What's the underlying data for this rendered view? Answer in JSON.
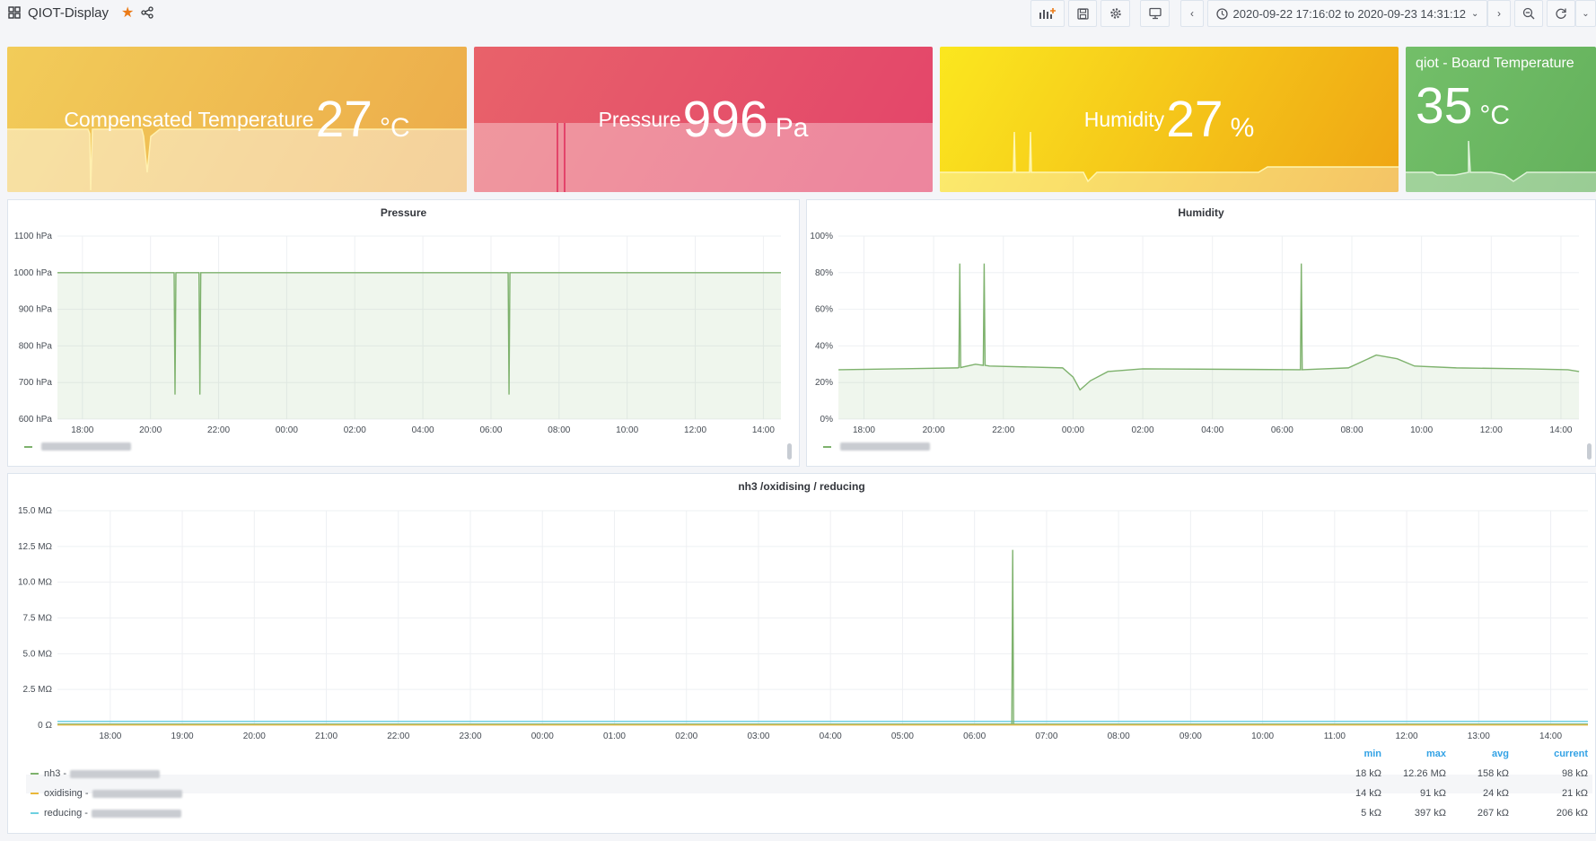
{
  "header": {
    "title": "QIOT-Display",
    "time_range": "2020-09-22 17:16:02 to 2020-09-23 14:31:12"
  },
  "stats": [
    {
      "prefix": "Compensated Temperature",
      "value": "27",
      "unit": "°C",
      "color_from": "#f2cc59",
      "color_to": "#ecab4a"
    },
    {
      "prefix": "Pressure",
      "value": "996",
      "unit": "Pa",
      "color_from": "#e8626a",
      "color_to": "#e3446a"
    },
    {
      "prefix": "Humidity",
      "value": "27",
      "unit": "%",
      "color_from": "#fbe71f",
      "color_to": "#efa514"
    },
    {
      "title": "qiot - Board Temperature",
      "value": "35",
      "unit": "°C",
      "color_from": "#73bf69",
      "color_to": "#64b15c"
    }
  ],
  "pressure_chart": {
    "title": "Pressure",
    "chart_data": {
      "type": "line",
      "y_ticks": [
        "1100 hPa",
        "1000 hPa",
        "900 hPa",
        "800 hPa",
        "700 hPa",
        "600 hPa"
      ],
      "x_ticks": [
        "18:00",
        "20:00",
        "22:00",
        "00:00",
        "02:00",
        "04:00",
        "06:00",
        "08:00",
        "10:00",
        "12:00",
        "14:00"
      ],
      "ylim": [
        600,
        1100
      ],
      "series": [
        {
          "color": "#7eb26d",
          "baseline": 1000,
          "dips": [
            {
              "x": 20.72,
              "y": 667
            },
            {
              "x": 21.45,
              "y": 667
            },
            {
              "x": 6.53,
              "y": 667
            }
          ]
        }
      ]
    }
  },
  "humidity_chart": {
    "title": "Humidity",
    "chart_data": {
      "type": "line",
      "y_ticks": [
        "100%",
        "80%",
        "60%",
        "40%",
        "20%",
        "0%"
      ],
      "x_ticks": [
        "18:00",
        "20:00",
        "22:00",
        "00:00",
        "02:00",
        "04:00",
        "06:00",
        "08:00",
        "10:00",
        "12:00",
        "14:00"
      ],
      "ylim": [
        0,
        100
      ],
      "series": [
        {
          "color": "#7eb26d",
          "spikes": [
            {
              "x": 20.75,
              "y": 85
            },
            {
              "x": 21.45,
              "y": 85
            },
            {
              "x": 6.55,
              "y": 85
            }
          ]
        }
      ]
    }
  },
  "sensor_chart": {
    "title": "nh3 /oxidising / reducing",
    "chart_data": {
      "type": "line",
      "y_ticks": [
        "15.0 MΩ",
        "12.5 MΩ",
        "10.0 MΩ",
        "7.5 MΩ",
        "5.0 MΩ",
        "2.5 MΩ",
        "0 Ω"
      ],
      "x_ticks": [
        "18:00",
        "19:00",
        "20:00",
        "21:00",
        "22:00",
        "23:00",
        "00:00",
        "01:00",
        "02:00",
        "03:00",
        "04:00",
        "05:00",
        "06:00",
        "07:00",
        "08:00",
        "09:00",
        "10:00",
        "11:00",
        "12:00",
        "13:00",
        "14:00"
      ],
      "ylim": [
        0,
        15
      ],
      "spike": {
        "x": 6.53,
        "y": 12.26
      }
    },
    "legend": {
      "headers": [
        "min",
        "max",
        "avg",
        "current"
      ],
      "rows": [
        {
          "name": "nh3 -",
          "color": "#7eb26d",
          "values": [
            "18 kΩ",
            "12.26 MΩ",
            "158 kΩ",
            "98 kΩ"
          ]
        },
        {
          "name": "oxidising -",
          "color": "#eab839",
          "values": [
            "14 kΩ",
            "91 kΩ",
            "24 kΩ",
            "21 kΩ"
          ]
        },
        {
          "name": "reducing -",
          "color": "#6ed0e0",
          "values": [
            "5 kΩ",
            "397 kΩ",
            "267 kΩ",
            "206 kΩ"
          ]
        }
      ]
    }
  }
}
